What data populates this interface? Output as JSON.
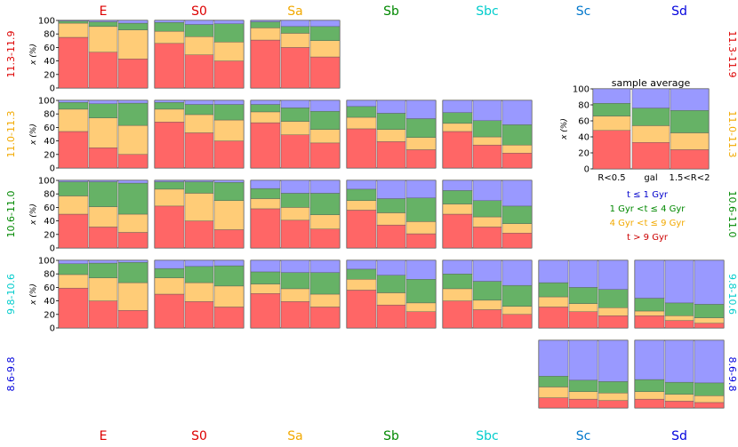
{
  "chart_data": {
    "type": "stacked_bar_grid",
    "ylabel": "x (%)",
    "ylim": [
      0,
      100
    ],
    "yticks": [
      0,
      20,
      40,
      60,
      80,
      100
    ],
    "bins": [
      "R<0.5",
      "gal",
      "1.5<R<2"
    ],
    "components": [
      {
        "key": "old",
        "label": "t > 9 Gyr",
        "color": "#ff6666"
      },
      {
        "key": "int",
        "label": "4 Gyr <t ≤ 9 Gyr",
        "color": "#ffcc77"
      },
      {
        "key": "young",
        "label": "1 Gyr <t ≤ 4 Gyr",
        "color": "#66b266"
      },
      {
        "key": "vyoung",
        "label": "t ≤ 1 Gyr",
        "color": "#9999ff"
      }
    ],
    "columns": [
      {
        "name": "E",
        "color": "#dd0000"
      },
      {
        "name": "S0",
        "color": "#dd0000"
      },
      {
        "name": "Sa",
        "color": "#f2a900"
      },
      {
        "name": "Sb",
        "color": "#008800"
      },
      {
        "name": "Sbc",
        "color": "#00cccc"
      },
      {
        "name": "Sc",
        "color": "#0077cc"
      },
      {
        "name": "Sd",
        "color": "#0000dd"
      }
    ],
    "rows": [
      {
        "name": "11.3-11.9",
        "color": "#dd0000"
      },
      {
        "name": "11.0-11.3",
        "color": "#f2a900"
      },
      {
        "name": "10.6-11.0",
        "color": "#008800"
      },
      {
        "name": "9.8-10.6",
        "color": "#00cccc"
      },
      {
        "name": "8.6-9.8",
        "color": "#0000dd"
      }
    ],
    "panels": [
      {
        "row": 0,
        "col": 0,
        "bars": [
          [
            75,
            21,
            3,
            1
          ],
          [
            53,
            38,
            7,
            2
          ],
          [
            43,
            43,
            10,
            4
          ]
        ]
      },
      {
        "row": 0,
        "col": 1,
        "bars": [
          [
            66,
            18,
            13,
            3
          ],
          [
            49,
            27,
            18,
            6
          ],
          [
            40,
            28,
            27,
            5
          ]
        ]
      },
      {
        "row": 0,
        "col": 2,
        "bars": [
          [
            71,
            18,
            9,
            2
          ],
          [
            60,
            21,
            10,
            9
          ],
          [
            46,
            24,
            21,
            9
          ]
        ]
      },
      {
        "row": 1,
        "col": 0,
        "bars": [
          [
            54,
            33,
            10,
            3
          ],
          [
            30,
            44,
            21,
            5
          ],
          [
            20,
            43,
            33,
            4
          ]
        ]
      },
      {
        "row": 1,
        "col": 1,
        "bars": [
          [
            68,
            19,
            10,
            3
          ],
          [
            52,
            27,
            15,
            6
          ],
          [
            40,
            31,
            23,
            6
          ]
        ]
      },
      {
        "row": 1,
        "col": 2,
        "bars": [
          [
            67,
            16,
            11,
            6
          ],
          [
            49,
            20,
            20,
            11
          ],
          [
            37,
            20,
            27,
            16
          ]
        ]
      },
      {
        "row": 1,
        "col": 3,
        "bars": [
          [
            58,
            17,
            16,
            9
          ],
          [
            39,
            18,
            24,
            19
          ],
          [
            27,
            18,
            28,
            27
          ]
        ]
      },
      {
        "row": 1,
        "col": 4,
        "bars": [
          [
            54,
            12,
            16,
            18
          ],
          [
            34,
            12,
            24,
            30
          ],
          [
            22,
            12,
            30,
            36
          ]
        ]
      },
      {
        "row": 2,
        "col": 0,
        "bars": [
          [
            50,
            27,
            21,
            2
          ],
          [
            31,
            30,
            37,
            2
          ],
          [
            23,
            27,
            46,
            4
          ]
        ]
      },
      {
        "row": 2,
        "col": 1,
        "bars": [
          [
            62,
            25,
            11,
            2
          ],
          [
            40,
            41,
            17,
            2
          ],
          [
            27,
            43,
            27,
            3
          ]
        ]
      },
      {
        "row": 2,
        "col": 2,
        "bars": [
          [
            58,
            15,
            15,
            12
          ],
          [
            41,
            19,
            21,
            19
          ],
          [
            28,
            21,
            32,
            19
          ]
        ]
      },
      {
        "row": 2,
        "col": 3,
        "bars": [
          [
            56,
            14,
            17,
            13
          ],
          [
            34,
            18,
            21,
            27
          ],
          [
            21,
            18,
            35,
            26
          ]
        ]
      },
      {
        "row": 2,
        "col": 4,
        "bars": [
          [
            50,
            15,
            20,
            15
          ],
          [
            31,
            15,
            24,
            30
          ],
          [
            22,
            14,
            26,
            38
          ]
        ]
      },
      {
        "row": 3,
        "col": 0,
        "bars": [
          [
            59,
            20,
            16,
            5
          ],
          [
            40,
            34,
            22,
            4
          ],
          [
            26,
            41,
            30,
            3
          ]
        ]
      },
      {
        "row": 3,
        "col": 1,
        "bars": [
          [
            50,
            24,
            14,
            12
          ],
          [
            39,
            28,
            24,
            9
          ],
          [
            31,
            31,
            30,
            8
          ]
        ]
      },
      {
        "row": 3,
        "col": 2,
        "bars": [
          [
            51,
            14,
            18,
            17
          ],
          [
            39,
            19,
            24,
            18
          ],
          [
            31,
            19,
            32,
            18
          ]
        ]
      },
      {
        "row": 3,
        "col": 3,
        "bars": [
          [
            56,
            16,
            15,
            13
          ],
          [
            34,
            18,
            26,
            22
          ],
          [
            24,
            13,
            35,
            28
          ]
        ]
      },
      {
        "row": 3,
        "col": 4,
        "bars": [
          [
            40,
            18,
            22,
            20
          ],
          [
            27,
            14,
            28,
            31
          ],
          [
            20,
            12,
            31,
            37
          ]
        ]
      },
      {
        "row": 3,
        "col": 5,
        "bars": [
          [
            31,
            15,
            21,
            33
          ],
          [
            24,
            12,
            24,
            40
          ],
          [
            18,
            12,
            27,
            43
          ]
        ]
      },
      {
        "row": 3,
        "col": 6,
        "bars": [
          [
            18,
            7,
            19,
            56
          ],
          [
            11,
            7,
            19,
            63
          ],
          [
            7,
            8,
            20,
            65
          ]
        ]
      },
      {
        "row": 4,
        "col": 5,
        "bars": [
          [
            15,
            16,
            16,
            53
          ],
          [
            13,
            11,
            17,
            59
          ],
          [
            11,
            11,
            17,
            61
          ]
        ]
      },
      {
        "row": 4,
        "col": 6,
        "bars": [
          [
            13,
            11,
            18,
            58
          ],
          [
            10,
            10,
            18,
            62
          ],
          [
            8,
            10,
            19,
            63
          ]
        ]
      }
    ],
    "sample_average": {
      "title": "sample average",
      "bars": [
        [
          48,
          18,
          16,
          18
        ],
        [
          33,
          21,
          22,
          24
        ],
        [
          24,
          21,
          28,
          27
        ]
      ]
    }
  }
}
